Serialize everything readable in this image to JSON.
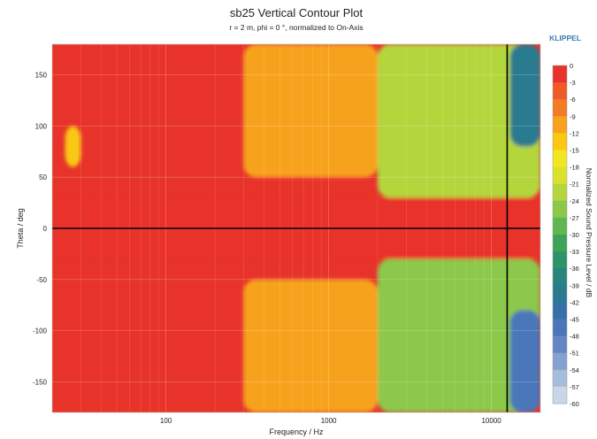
{
  "chart_data": {
    "type": "heatmap",
    "title": "sb25 Vertical Contour Plot",
    "subtitle": "r = 2 m, phi = 0 °, normalized to On-Axis",
    "brand": "KLIPPEL",
    "xlabel": "Frequency / Hz",
    "ylabel": "Theta / deg",
    "colorbar_label": "Normalized Sound Pressure Level / dB",
    "x_scale": "log",
    "xlim": [
      20,
      20000
    ],
    "ylim": [
      -180,
      180
    ],
    "x_ticks": [
      {
        "value": 100,
        "label": "100"
      },
      {
        "value": 1000,
        "label": "1000"
      },
      {
        "value": 10000,
        "label": "10000"
      }
    ],
    "y_ticks": [
      {
        "value": 150,
        "label": "150"
      },
      {
        "value": 100,
        "label": "100"
      },
      {
        "value": 50,
        "label": "50"
      },
      {
        "value": 0,
        "label": "0"
      },
      {
        "value": -50,
        "label": "-50"
      },
      {
        "value": -100,
        "label": "-100"
      },
      {
        "value": -150,
        "label": "-150"
      }
    ],
    "colorbar_levels": [
      0,
      -3,
      -6,
      -9,
      -12,
      -15,
      -18,
      -21,
      -24,
      -27,
      -30,
      -33,
      -36,
      -39,
      -42,
      -45,
      -48,
      -51,
      -54,
      -57,
      -60
    ],
    "colorbar_colors": [
      "#e8332a",
      "#ef5a28",
      "#f47b25",
      "#f7a21c",
      "#f9c814",
      "#f3e51f",
      "#d9e22c",
      "#b4d63d",
      "#8cc84a",
      "#5fb84f",
      "#3ea356",
      "#2d9468",
      "#27867b",
      "#2b7a90",
      "#3770a8",
      "#4a77b9",
      "#6686c3",
      "#86a0cf",
      "#a7bbdb",
      "#c9d6e8"
    ],
    "reference_lines": [
      {
        "axis": "y",
        "value": 0
      },
      {
        "axis": "x",
        "value": 12500
      }
    ],
    "grid": true,
    "legend": "colorbar-right",
    "matrix_note": "",
    "regions": [
      {
        "theta_min": -30,
        "theta_max": 30,
        "f_max": 20000,
        "level_db": 0
      },
      {
        "theta_min": 60,
        "theta_max": 100,
        "f_min": 24,
        "f_max": 30,
        "level_db": -12
      },
      {
        "theta_min": 50,
        "theta_max": 180,
        "f_min": 300,
        "f_max": 2000,
        "level_db": -9
      },
      {
        "theta_min": -180,
        "theta_max": -50,
        "f_min": 300,
        "f_max": 2000,
        "level_db": -9
      },
      {
        "theta_min": 30,
        "theta_max": 180,
        "f_min": 2000,
        "f_max": 20000,
        "level_db": -21
      },
      {
        "theta_min": -180,
        "theta_max": -30,
        "f_min": 2000,
        "f_max": 20000,
        "level_db": -24
      },
      {
        "theta_min": 80,
        "theta_max": 180,
        "f_min": 13000,
        "f_max": 20000,
        "level_db": -39
      },
      {
        "theta_min": -180,
        "theta_max": -80,
        "f_min": 13000,
        "f_max": 20000,
        "level_db": -45
      }
    ]
  }
}
